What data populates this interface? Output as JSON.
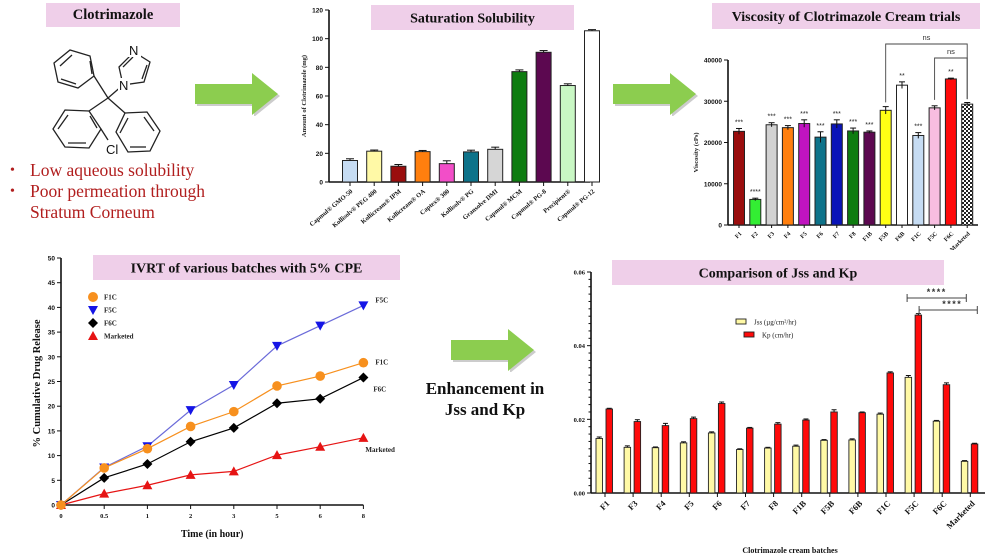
{
  "molecule": {
    "title": "Clotrimazole",
    "atoms": {
      "n_top": "N",
      "n_ring": "N",
      "cl": "Cl"
    },
    "bullets": [
      "Low aqueous solubility",
      "Poor permeation through Stratum Corneum"
    ],
    "colors": {
      "bullet_text": "#b11e1e",
      "title_bg": "#efcfe9"
    }
  },
  "arrow_label": {
    "line1": "Enhancement in",
    "line2": "Jss and Kp"
  },
  "chart_data": [
    {
      "id": "saturation-solubility",
      "type": "bar",
      "title": "Saturation Solubility",
      "xlabel": "",
      "ylabel": "Amount of Clotrimazole (mg)",
      "ylim": [
        0,
        120
      ],
      "yticks": [
        0,
        20,
        40,
        60,
        80,
        100,
        120
      ],
      "categories": [
        "Capmul® GMO-50",
        "Kollisolv® PEG 400",
        "Kollicream® IPM",
        "Kollicream® OA",
        "Captex® 300",
        "Kollisolv® PG",
        "Gransolve DMI",
        "Capmul® MCM",
        "Capmul® PG-8",
        "Precipient®",
        "Capmul® PG-12"
      ],
      "values": [
        15,
        21.5,
        11,
        21.2,
        12.8,
        21,
        22.8,
        77,
        90.5,
        67.3,
        105.5
      ],
      "errors": [
        1.2,
        0.8,
        1.2,
        0.8,
        2.0,
        1.2,
        1.5,
        1.2,
        1.2,
        1.2,
        0.8
      ],
      "colors": [
        "#c6dcf3",
        "#fff9a6",
        "#9a0e0e",
        "#ff7f0e",
        "#f24ec8",
        "#0e738a",
        "#d6d6d6",
        "#0e7c10",
        "#5c0850",
        "#c9f7c4",
        "#ffffff"
      ],
      "grid": false
    },
    {
      "id": "viscosity",
      "type": "bar",
      "title": "Viscosity of Clotrimazole Cream trials",
      "xlabel": "",
      "ylabel": "Viscosity (cPs)",
      "ylim": [
        0,
        40000
      ],
      "yticks": [
        0,
        10000,
        20000,
        30000,
        40000
      ],
      "categories": [
        "F1",
        "F2",
        "F3",
        "F4",
        "F5",
        "F6",
        "F7",
        "F8",
        "F1B",
        "F5B",
        "F6B",
        "F1C",
        "F5C",
        "F6C",
        "Marketed"
      ],
      "values": [
        22700,
        6200,
        24300,
        23600,
        24600,
        21300,
        24500,
        22800,
        22500,
        27800,
        33900,
        21700,
        28400,
        35400,
        29300
      ],
      "errors": [
        700,
        300,
        500,
        500,
        900,
        1300,
        1000,
        700,
        300,
        900,
        800,
        700,
        500,
        200,
        400
      ],
      "colors": [
        "#9a0e0e",
        "#33ee33",
        "#d2d2d2",
        "#ff7f0e",
        "#c014c0",
        "#0e738a",
        "#0a14b8",
        "#0e7c10",
        "#5c0850",
        "#ffff14",
        "#ffffff",
        "#c6dcf3",
        "#f8bde0",
        "#ff0a0a",
        "checker"
      ],
      "significance": [
        "***",
        "****",
        "***",
        "***",
        "***",
        "***",
        "***",
        "***",
        "***",
        "",
        "**",
        "***",
        "",
        "**",
        ""
      ],
      "brackets": [
        {
          "from": "F5B",
          "to": "Marketed",
          "label": "ns"
        },
        {
          "from": "F5C",
          "to": "Marketed",
          "label": "ns"
        }
      ],
      "grid": false
    },
    {
      "id": "ivrt",
      "type": "line",
      "title": "IVRT of various batches with 5% CPE",
      "xlabel": "Time (in hour)",
      "ylabel": "% Cumulative Drug Release",
      "ylim": [
        0,
        50
      ],
      "yticks": [
        0,
        5,
        10,
        15,
        20,
        25,
        30,
        35,
        40,
        45,
        50
      ],
      "x": [
        "0",
        "0.5",
        "1",
        "2",
        "3",
        "5",
        "6",
        "8"
      ],
      "series": [
        {
          "name": "F1C",
          "marker": "circle",
          "color": "#f7901e",
          "values": [
            0,
            7.5,
            11.4,
            15.9,
            18.9,
            24.1,
            26.1,
            28.8
          ]
        },
        {
          "name": "F5C",
          "marker": "triangle-down",
          "color": "#1515e6",
          "line_color": "#6b6bd9",
          "values": [
            0,
            7.6,
            11.9,
            19.2,
            24.3,
            32.2,
            36.3,
            40.4
          ]
        },
        {
          "name": "F6C",
          "marker": "diamond",
          "color": "#000000",
          "values": [
            0,
            5.5,
            8.3,
            12.8,
            15.6,
            20.6,
            21.5,
            25.8
          ]
        },
        {
          "name": "Marketed",
          "marker": "triangle-up",
          "color": "#e61414",
          "values": [
            0,
            2.3,
            4.0,
            6.1,
            6.8,
            10.1,
            11.8,
            13.6
          ]
        }
      ],
      "end_labels": [
        "F1C",
        "F5C",
        "F6C",
        "Marketed"
      ],
      "legend": "top-left",
      "grid": false
    },
    {
      "id": "jss-kp",
      "type": "bar",
      "title": "Comparison of Jss and Kp",
      "xlabel": "Clotrimazole cream batches",
      "ylabel": "",
      "ylim": [
        0,
        0.06
      ],
      "yticks": [
        "0.00",
        "0.02",
        "0.04",
        "0.06"
      ],
      "categories": [
        "F1",
        "F3",
        "F4",
        "F5",
        "F6",
        "F7",
        "F8",
        "F1B",
        "F5B",
        "F6B",
        "F1C",
        "F5C",
        "F6C",
        "Marketed"
      ],
      "series": [
        {
          "name": "Jss (µg/cm²/hr)",
          "color": "#fff9a6",
          "values": [
            0.0148,
            0.0124,
            0.0123,
            0.0136,
            0.0163,
            0.0118,
            0.0122,
            0.0127,
            0.0143,
            0.0144,
            0.0214,
            0.0314,
            0.0195,
            0.0086
          ],
          "errors": [
            0.0004,
            0.0004,
            0.0002,
            0.0003,
            0.0003,
            0.0002,
            0.0002,
            0.0003,
            0.0002,
            0.0003,
            0.0003,
            0.0005,
            0.0002,
            0.0002
          ]
        },
        {
          "name": "Kp (cm/hr)",
          "color": "#ff0a0a",
          "values": [
            0.0228,
            0.0194,
            0.0183,
            0.0202,
            0.0243,
            0.0176,
            0.0187,
            0.0198,
            0.022,
            0.0218,
            0.0326,
            0.0483,
            0.0294,
            0.0133
          ],
          "errors": [
            0.0002,
            0.0005,
            0.0006,
            0.0004,
            0.0004,
            0.0002,
            0.0004,
            0.0003,
            0.0006,
            0.0002,
            0.0003,
            0.0004,
            0.0005,
            0.0002
          ]
        }
      ],
      "brackets": [
        {
          "from": "F5C",
          "to": "Marketed",
          "label": "****",
          "level": 1
        },
        {
          "from": "F5C",
          "to": "Marketed",
          "label": "****",
          "level": 2
        }
      ],
      "legend": "top-center",
      "grid": false
    }
  ]
}
